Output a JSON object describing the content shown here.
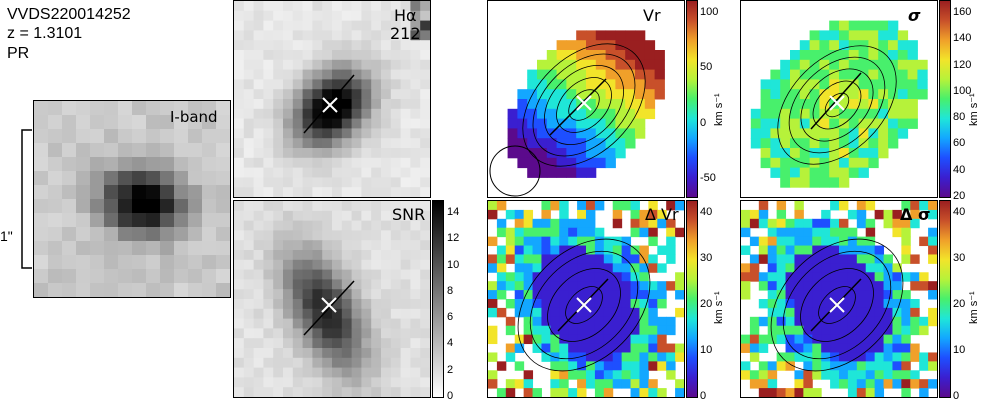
{
  "object": {
    "id": "VVDS220014252",
    "redshift": "z = 1.3101",
    "class": "PR"
  },
  "scale_bar": {
    "label": "1\""
  },
  "panels": {
    "iband": {
      "label": "I-band"
    },
    "halpha": {
      "label": "Hα",
      "value": "212"
    },
    "snr": {
      "label": "SNR",
      "ticks": [
        "14",
        "12",
        "10",
        "8",
        "6",
        "4",
        "2",
        "0"
      ]
    },
    "vr": {
      "label": "Vr",
      "ticks": [
        "100",
        "50",
        "0",
        "-50"
      ],
      "unit": "km s⁻¹"
    },
    "sigma": {
      "label": "σ",
      "ticks": [
        "160",
        "140",
        "120",
        "100",
        "80",
        "60",
        "40",
        "20"
      ],
      "unit": "km s⁻¹"
    },
    "dvr": {
      "label": "Δ Vr",
      "ticks": [
        "40",
        "30",
        "20",
        "10",
        "0"
      ],
      "unit": "km s⁻¹"
    },
    "dsigma": {
      "label": "Δ σ",
      "ticks": [
        "40",
        "30",
        "20",
        "10",
        "0"
      ],
      "unit": "km s⁻¹"
    }
  },
  "colors": {
    "rainbow": [
      "#5b0a8c",
      "#3a1fd0",
      "#1e4fff",
      "#13a7ff",
      "#1fe6d8",
      "#48f06c",
      "#b6f23a",
      "#f2e42a",
      "#f0a02a",
      "#c8502a",
      "#9a1f20"
    ]
  }
}
